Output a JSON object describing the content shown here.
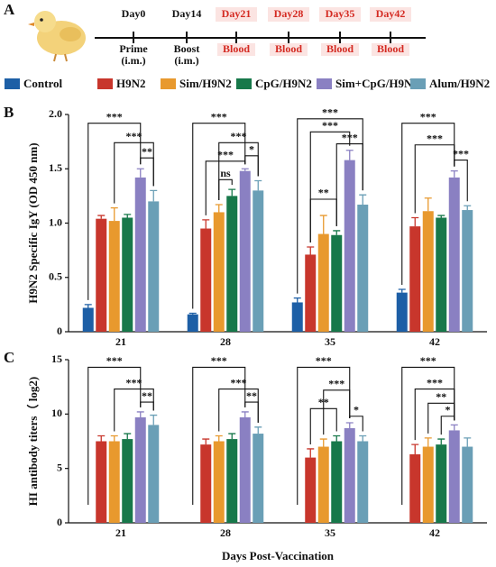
{
  "panels": [
    "A",
    "B",
    "C"
  ],
  "timeline": {
    "points": [
      {
        "day": "Day0",
        "label": [
          "Prime",
          "(i.m.)"
        ]
      },
      {
        "day": "Day14",
        "label": [
          "Boost",
          "(i.m.)"
        ]
      },
      {
        "day": "Day21",
        "label": [
          "Blood"
        ]
      },
      {
        "day": "Day28",
        "label": [
          "Blood"
        ]
      },
      {
        "day": "Day35",
        "label": [
          "Blood"
        ]
      },
      {
        "day": "Day42",
        "label": [
          "Blood"
        ]
      }
    ]
  },
  "legend": [
    {
      "name": "Control",
      "color": "#1d5fa6"
    },
    {
      "name": "H9N2",
      "color": "#c8362c"
    },
    {
      "name": "Sim/H9N2",
      "color": "#e8992e"
    },
    {
      "name": "CpG/H9N2",
      "color": "#17784a"
    },
    {
      "name": "Sim+CpG/H9N2",
      "color": "#8a80c2"
    },
    {
      "name": "Alum/H9N2",
      "color": "#6a9fb6"
    }
  ],
  "chart_data": [
    {
      "type": "bar",
      "y_label": "H9N2 Specific IgY (OD 450 nm)",
      "categories": [
        "21",
        "28",
        "35",
        "42"
      ],
      "ylim": [
        0,
        2
      ],
      "yticks": [
        0,
        0.5,
        {
          "value": 1,
          "label": "1.0"
        },
        1.5,
        {
          "value": 2,
          "label": "2.0"
        }
      ],
      "series": [
        {
          "values": [
            0.22,
            0.16,
            0.27,
            0.36
          ],
          "errors": [
            0.03,
            0.01,
            0.04,
            0.03
          ]
        },
        {
          "values": [
            1.04,
            0.95,
            0.71,
            0.97
          ],
          "errors": [
            0.03,
            0.08,
            0.07,
            0.08
          ]
        },
        {
          "values": [
            1.02,
            1.1,
            0.9,
            1.11
          ],
          "errors": [
            0.12,
            0.07,
            0.17,
            0.12
          ]
        },
        {
          "values": [
            1.05,
            1.25,
            0.89,
            1.05
          ],
          "errors": [
            0.03,
            0.06,
            0.04,
            0.02
          ]
        },
        {
          "values": [
            1.42,
            1.48,
            1.58,
            1.42
          ],
          "errors": [
            0.08,
            0.02,
            0.09,
            0.06
          ]
        },
        {
          "values": [
            1.2,
            1.3,
            1.17,
            1.12
          ],
          "errors": [
            0.1,
            0.09,
            0.09,
            0.04
          ]
        }
      ],
      "significance": [
        [
          "***",
          "***",
          "**"
        ],
        [
          "***",
          "***",
          "***",
          "ns",
          "*"
        ],
        [
          "***",
          "***",
          "***",
          "**"
        ],
        [
          "***",
          "***",
          "***"
        ]
      ]
    },
    {
      "type": "bar",
      "y_label": "HI antibody titers（ log2)",
      "x_label": "Days Post-Vaccination",
      "categories": [
        "21",
        "28",
        "35",
        "42"
      ],
      "ylim": [
        0,
        15
      ],
      "yticks": [
        0,
        5,
        10,
        15
      ],
      "series": [
        {
          "values": [
            null,
            null,
            null,
            null
          ],
          "errors": [
            null,
            null,
            null,
            null
          ]
        },
        {
          "values": [
            7.5,
            7.2,
            6.0,
            6.3
          ],
          "errors": [
            0.5,
            0.5,
            0.8,
            0.9
          ]
        },
        {
          "values": [
            7.5,
            7.5,
            7.0,
            7.0
          ],
          "errors": [
            0.5,
            0.5,
            0.7,
            0.8
          ]
        },
        {
          "values": [
            7.7,
            7.7,
            7.5,
            7.2
          ],
          "errors": [
            0.5,
            0.5,
            0.5,
            0.5
          ]
        },
        {
          "values": [
            9.7,
            9.7,
            8.7,
            8.5
          ],
          "errors": [
            0.5,
            0.5,
            0.5,
            0.5
          ]
        },
        {
          "values": [
            9.0,
            8.2,
            7.5,
            7.0
          ],
          "errors": [
            0.9,
            0.6,
            0.5,
            0.8
          ]
        }
      ],
      "significance": [
        [
          "***",
          "***",
          "**"
        ],
        [
          "***",
          "***",
          "**"
        ],
        [
          "***",
          "***",
          "**",
          "*"
        ],
        [
          "***",
          "***",
          "**",
          "*"
        ]
      ]
    }
  ]
}
